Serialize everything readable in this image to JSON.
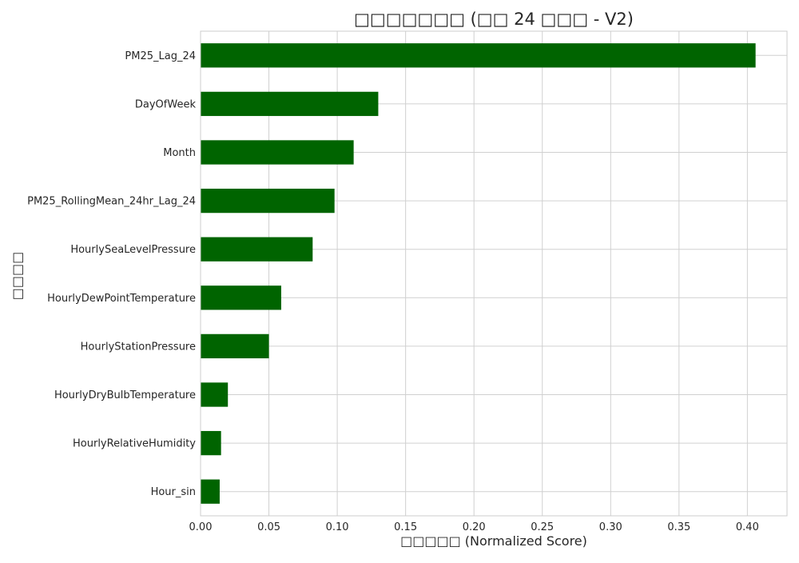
{
  "chart_data": {
    "type": "bar",
    "orientation": "horizontal",
    "title": "□□□□□□□ (□□ 24 □□□ - V2)",
    "xlabel": "□□□□□ (Normalized Score)",
    "ylabel": "□□□□",
    "categories": [
      "PM25_Lag_24",
      "DayOfWeek",
      "Month",
      "PM25_RollingMean_24hr_Lag_24",
      "HourlySeaLevelPressure",
      "HourlyDewPointTemperature",
      "HourlyStationPressure",
      "HourlyDryBulbTemperature",
      "HourlyRelativeHumidity",
      "Hour_sin"
    ],
    "values": [
      0.406,
      0.13,
      0.112,
      0.098,
      0.082,
      0.059,
      0.05,
      0.02,
      0.015,
      0.014
    ],
    "xlim": [
      0.0,
      0.429
    ],
    "xticks": [
      0.0,
      0.05,
      0.1,
      0.15,
      0.2,
      0.25,
      0.3,
      0.35,
      0.4
    ],
    "xtick_labels": [
      "0.00",
      "0.05",
      "0.10",
      "0.15",
      "0.20",
      "0.25",
      "0.30",
      "0.35",
      "0.40"
    ],
    "grid": true,
    "bar_color": "#006400",
    "grid_color": "#d0d0d0",
    "frame_color": "#cccccc"
  }
}
